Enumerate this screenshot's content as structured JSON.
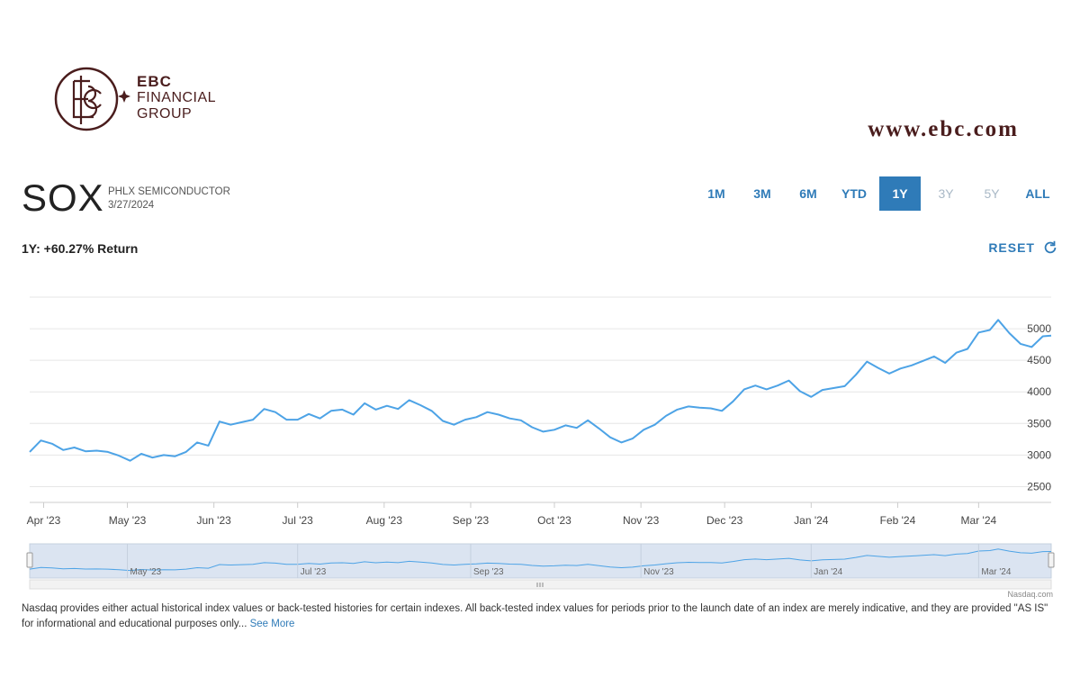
{
  "brand": {
    "line1": "EBC",
    "line2": "FINANCIAL",
    "line3": "GROUP",
    "url": "www.ebc.com",
    "color": "#4a1d1d"
  },
  "header": {
    "ticker": "SOX",
    "index_name": "PHLX SEMICONDUCTOR",
    "date": "3/27/2024"
  },
  "ranges": [
    {
      "label": "1M",
      "state": "enabled"
    },
    {
      "label": "3M",
      "state": "enabled"
    },
    {
      "label": "6M",
      "state": "enabled"
    },
    {
      "label": "YTD",
      "state": "enabled"
    },
    {
      "label": "1Y",
      "state": "active"
    },
    {
      "label": "3Y",
      "state": "disabled"
    },
    {
      "label": "5Y",
      "state": "disabled"
    },
    {
      "label": "ALL",
      "state": "enabled"
    }
  ],
  "summary": {
    "return_text": "1Y: +60.27% Return",
    "reset_label": "RESET"
  },
  "footer": {
    "disclaimer": "Nasdaq provides either actual historical index values or back-tested histories for certain indexes. All back-tested index values for periods prior to the launch date of an index are merely indicative, and they are provided \"AS IS\" for informational and educational purposes only...",
    "see_more": "See More",
    "credit": "Nasdaq.com"
  },
  "colors": {
    "accent": "#2f7bb8",
    "line": "#4da3e6",
    "navigator_fill": "#dbe4f1"
  },
  "chart_data": {
    "type": "line",
    "title": "",
    "xlabel": "",
    "ylabel": "",
    "ylim": [
      2250,
      5500
    ],
    "yticks": [
      2500,
      3000,
      3500,
      4000,
      4500,
      5000
    ],
    "xlim": [
      "2023-03-27",
      "2024-03-27"
    ],
    "xticks": [
      {
        "label": "Apr '23",
        "date": "2023-04-01"
      },
      {
        "label": "May '23",
        "date": "2023-05-01"
      },
      {
        "label": "Jun '23",
        "date": "2023-06-01"
      },
      {
        "label": "Jul '23",
        "date": "2023-07-01"
      },
      {
        "label": "Aug '23",
        "date": "2023-08-01"
      },
      {
        "label": "Sep '23",
        "date": "2023-09-01"
      },
      {
        "label": "Oct '23",
        "date": "2023-10-01"
      },
      {
        "label": "Nov '23",
        "date": "2023-11-01"
      },
      {
        "label": "Dec '23",
        "date": "2023-12-01"
      },
      {
        "label": "Jan '24",
        "date": "2024-01-01"
      },
      {
        "label": "Feb '24",
        "date": "2024-02-01"
      },
      {
        "label": "Mar '24",
        "date": "2024-03-01"
      }
    ],
    "navigator_ticks": [
      "May '23",
      "Jul '23",
      "Sep '23",
      "Nov '23",
      "Jan '24",
      "Mar '24"
    ],
    "grid": true,
    "legend": "none",
    "series": [
      {
        "x": [
          "2023-03-27",
          "2023-03-31",
          "2023-04-04",
          "2023-04-08",
          "2023-04-12",
          "2023-04-16",
          "2023-04-20",
          "2023-04-24",
          "2023-04-28",
          "2023-05-02",
          "2023-05-06",
          "2023-05-10",
          "2023-05-14",
          "2023-05-18",
          "2023-05-22",
          "2023-05-26",
          "2023-05-30",
          "2023-06-03",
          "2023-06-07",
          "2023-06-11",
          "2023-06-15",
          "2023-06-19",
          "2023-06-23",
          "2023-06-27",
          "2023-07-01",
          "2023-07-05",
          "2023-07-09",
          "2023-07-13",
          "2023-07-17",
          "2023-07-21",
          "2023-07-25",
          "2023-07-29",
          "2023-08-02",
          "2023-08-06",
          "2023-08-10",
          "2023-08-14",
          "2023-08-18",
          "2023-08-22",
          "2023-08-26",
          "2023-08-30",
          "2023-09-03",
          "2023-09-07",
          "2023-09-11",
          "2023-09-15",
          "2023-09-19",
          "2023-09-23",
          "2023-09-27",
          "2023-10-01",
          "2023-10-05",
          "2023-10-09",
          "2023-10-13",
          "2023-10-17",
          "2023-10-21",
          "2023-10-25",
          "2023-10-29",
          "2023-11-02",
          "2023-11-06",
          "2023-11-10",
          "2023-11-14",
          "2023-11-18",
          "2023-11-22",
          "2023-11-26",
          "2023-11-30",
          "2023-12-04",
          "2023-12-08",
          "2023-12-12",
          "2023-12-16",
          "2023-12-20",
          "2023-12-24",
          "2023-12-28",
          "2024-01-01",
          "2024-01-05",
          "2024-01-09",
          "2024-01-13",
          "2024-01-17",
          "2024-01-21",
          "2024-01-25",
          "2024-01-29",
          "2024-02-02",
          "2024-02-06",
          "2024-02-10",
          "2024-02-14",
          "2024-02-18",
          "2024-02-22",
          "2024-02-26",
          "2024-03-01",
          "2024-03-05",
          "2024-03-08",
          "2024-03-12",
          "2024-03-16",
          "2024-03-20",
          "2024-03-24",
          "2024-03-27"
        ],
        "y": [
          3050,
          3230,
          3180,
          3080,
          3120,
          3060,
          3070,
          3050,
          2990,
          2910,
          3020,
          2960,
          3000,
          2980,
          3050,
          3200,
          3150,
          3530,
          3480,
          3520,
          3560,
          3730,
          3680,
          3560,
          3560,
          3650,
          3580,
          3700,
          3720,
          3640,
          3820,
          3720,
          3780,
          3730,
          3870,
          3790,
          3700,
          3540,
          3480,
          3560,
          3600,
          3680,
          3640,
          3580,
          3550,
          3440,
          3370,
          3400,
          3470,
          3430,
          3550,
          3420,
          3280,
          3200,
          3260,
          3400,
          3480,
          3620,
          3720,
          3770,
          3750,
          3740,
          3700,
          3850,
          4040,
          4100,
          4040,
          4100,
          4180,
          4010,
          3920,
          4030,
          4060,
          4090,
          4270,
          4480,
          4380,
          4290,
          4370,
          4420,
          4490,
          4560,
          4460,
          4620,
          4680,
          4940,
          4980,
          5140,
          4930,
          4760,
          4710,
          4880,
          4890
        ]
      }
    ]
  }
}
